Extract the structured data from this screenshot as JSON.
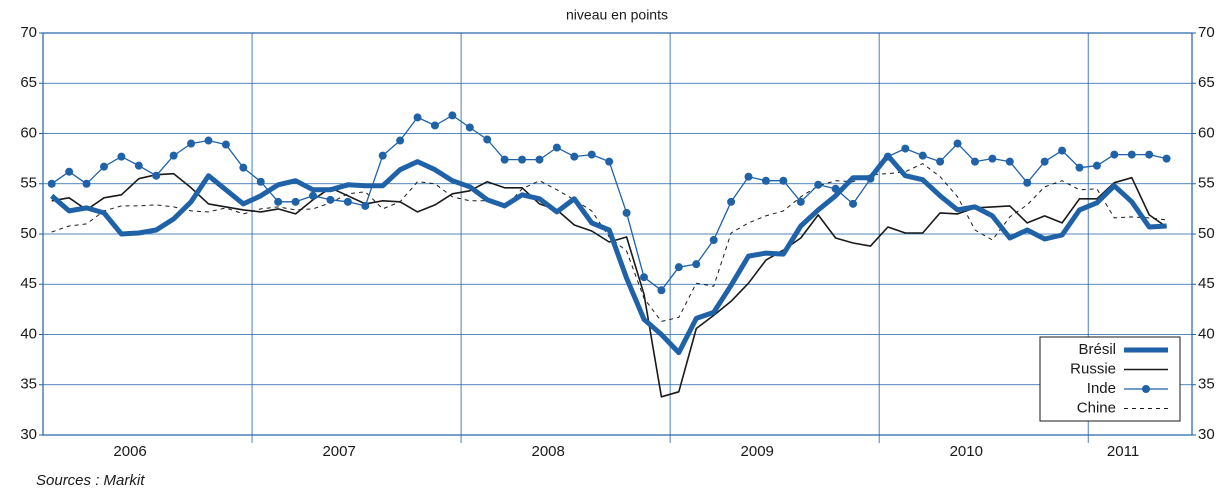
{
  "chart_data": {
    "type": "line",
    "subtitle": "niveau en points",
    "source": "Sources :  Markit",
    "categories": [
      null,
      null,
      null,
      null,
      null,
      "2006",
      null,
      null,
      null,
      null,
      null,
      null,
      null,
      null,
      null,
      null,
      null,
      "2007",
      null,
      null,
      null,
      null,
      null,
      null,
      null,
      null,
      null,
      null,
      null,
      "2008",
      null,
      null,
      null,
      null,
      null,
      null,
      null,
      null,
      null,
      null,
      null,
      "2009",
      null,
      null,
      null,
      null,
      null,
      null,
      null,
      null,
      null,
      null,
      null,
      "2010",
      null,
      null,
      null,
      null,
      null,
      null,
      null,
      null,
      "2011",
      null,
      null
    ],
    "ylim": [
      30,
      70
    ],
    "yticks": [
      30,
      35,
      40,
      45,
      50,
      55,
      60,
      65,
      70
    ],
    "grid": true,
    "legend": "bottom-right",
    "series": [
      {
        "name": "Brésil",
        "color": "#1f62a8",
        "style": "thick",
        "values": [
          53.8,
          52.3,
          52.6,
          52.1,
          50.0,
          50.1,
          50.4,
          51.5,
          53.2,
          55.8,
          54.4,
          53.0,
          53.8,
          54.9,
          55.3,
          54.4,
          54.4,
          54.9,
          54.8,
          54.8,
          56.4,
          57.2,
          56.4,
          55.3,
          54.7,
          53.4,
          52.8,
          53.9,
          53.5,
          52.2,
          53.5,
          51.1,
          50.4,
          45.6,
          41.5,
          40.0,
          38.2,
          41.6,
          42.2,
          44.9,
          47.8,
          48.1,
          48.0,
          50.8,
          52.4,
          53.8,
          55.6,
          55.6,
          57.8,
          55.8,
          55.4,
          53.8,
          52.4,
          52.7,
          51.8,
          49.6,
          50.4,
          49.5,
          49.9,
          52.4,
          53.1,
          54.8,
          53.2,
          50.7,
          50.8
        ]
      },
      {
        "name": "Russie",
        "color": "#1a1a1a",
        "style": "solid",
        "values": [
          53.3,
          53.6,
          52.4,
          53.6,
          53.9,
          55.5,
          55.9,
          56.0,
          54.6,
          53.0,
          52.7,
          52.4,
          52.2,
          52.5,
          52.0,
          53.4,
          54.6,
          53.8,
          53.0,
          53.3,
          53.2,
          52.2,
          52.9,
          54.0,
          54.3,
          55.2,
          54.6,
          54.6,
          53.0,
          52.4,
          50.9,
          50.3,
          49.2,
          49.7,
          44.0,
          33.8,
          34.3,
          40.6,
          41.9,
          43.3,
          45.1,
          47.4,
          48.4,
          49.6,
          51.9,
          49.6,
          49.1,
          48.8,
          50.7,
          50.1,
          50.1,
          52.1,
          52.0,
          52.6,
          52.7,
          52.8,
          51.1,
          51.8,
          51.1,
          53.5,
          53.5,
          55.1,
          55.6,
          51.9,
          50.7
        ]
      },
      {
        "name": "Inde",
        "color": "#1f62a8",
        "style": "dots",
        "values": [
          55.0,
          56.2,
          55.0,
          56.7,
          57.7,
          56.8,
          55.8,
          57.8,
          59.0,
          59.3,
          58.9,
          56.6,
          55.2,
          53.2,
          53.2,
          53.8,
          53.4,
          53.2,
          52.8,
          57.8,
          59.3,
          61.6,
          60.8,
          61.8,
          60.6,
          59.4,
          57.4,
          57.4,
          57.4,
          58.6,
          57.7,
          57.9,
          57.2,
          52.1,
          45.7,
          44.4,
          46.7,
          47.0,
          49.4,
          53.2,
          55.7,
          55.3,
          55.3,
          53.2,
          54.9,
          54.5,
          53.0,
          55.5,
          57.7,
          58.5,
          57.8,
          57.2,
          59.0,
          57.2,
          57.5,
          57.2,
          55.1,
          57.2,
          58.3,
          56.6,
          56.8,
          57.9,
          57.9,
          57.9,
          57.5
        ]
      },
      {
        "name": "Chine",
        "color": "#1a1a1a",
        "style": "dashed",
        "values": [
          50.2,
          50.8,
          51.0,
          52.3,
          52.8,
          52.8,
          52.9,
          52.7,
          52.3,
          52.2,
          52.6,
          52.0,
          52.5,
          52.7,
          52.4,
          52.5,
          53.1,
          54.0,
          54.2,
          52.5,
          53.2,
          55.2,
          55.0,
          53.7,
          53.3,
          53.3,
          52.6,
          54.5,
          55.3,
          54.4,
          53.4,
          52.3,
          49.7,
          48.3,
          43.6,
          41.3,
          41.7,
          45.1,
          44.8,
          50.1,
          51.1,
          51.8,
          52.3,
          53.7,
          54.8,
          55.3,
          55.2,
          55.9,
          56.0,
          56.2,
          57.0,
          55.7,
          53.7,
          50.4,
          49.4,
          51.7,
          52.9,
          54.7,
          55.3,
          54.4,
          54.5,
          51.6,
          51.7,
          51.6,
          51.4
        ]
      }
    ]
  }
}
